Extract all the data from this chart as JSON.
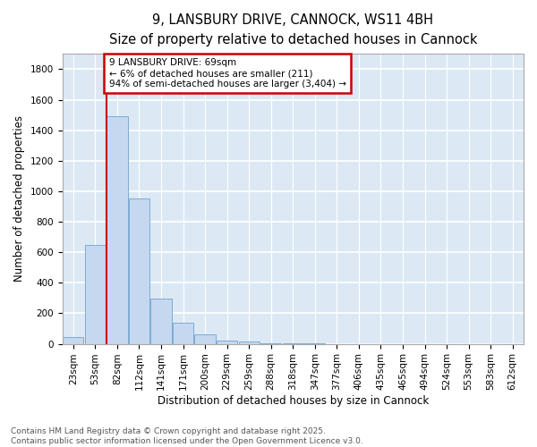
{
  "title_line1": "9, LANSBURY DRIVE, CANNOCK, WS11 4BH",
  "title_line2": "Size of property relative to detached houses in Cannock",
  "xlabel": "Distribution of detached houses by size in Cannock",
  "ylabel": "Number of detached properties",
  "categories": [
    "23sqm",
    "53sqm",
    "82sqm",
    "112sqm",
    "141sqm",
    "171sqm",
    "200sqm",
    "229sqm",
    "259sqm",
    "288sqm",
    "318sqm",
    "347sqm",
    "377sqm",
    "406sqm",
    "435sqm",
    "465sqm",
    "494sqm",
    "524sqm",
    "553sqm",
    "583sqm",
    "612sqm"
  ],
  "values": [
    45,
    650,
    1490,
    950,
    295,
    140,
    65,
    22,
    15,
    5,
    2,
    1,
    0,
    0,
    0,
    0,
    0,
    0,
    0,
    0,
    0
  ],
  "bar_color": "#c5d8f0",
  "bar_edge_color": "#7bacd4",
  "property_line_x": 1.5,
  "annotation_box_text": "9 LANSBURY DRIVE: 69sqm\n← 6% of detached houses are smaller (211)\n94% of semi-detached houses are larger (3,404) →",
  "annotation_box_color": "#ffffff",
  "annotation_box_edge_color": "#cc0000",
  "property_line_color": "#cc0000",
  "ylim": [
    0,
    1900
  ],
  "yticks": [
    0,
    200,
    400,
    600,
    800,
    1000,
    1200,
    1400,
    1600,
    1800
  ],
  "background_color": "#dce9f5",
  "grid_color": "#ffffff",
  "fig_background_color": "#ffffff",
  "footer_text": "Contains HM Land Registry data © Crown copyright and database right 2025.\nContains public sector information licensed under the Open Government Licence v3.0.",
  "title_fontsize": 10.5,
  "subtitle_fontsize": 9.5,
  "axis_label_fontsize": 8.5,
  "tick_fontsize": 7.5,
  "annotation_fontsize": 7.5,
  "footer_fontsize": 6.5
}
